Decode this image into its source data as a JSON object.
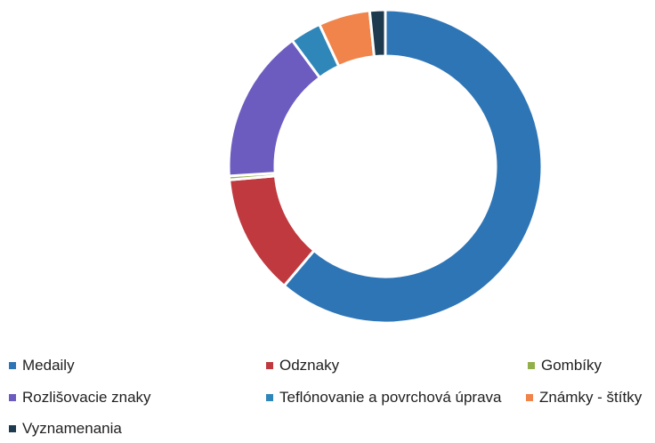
{
  "chart_data": {
    "type": "pie",
    "variant": "donut",
    "title": "",
    "legend_position": "bottom",
    "series": [
      {
        "labels": [
          "Medaily",
          "Odznaky",
          "Gombíky",
          "Rozlišovacie znaky",
          "Teflónovanie a povrchová úprava",
          "Známky - štítky",
          "Vyznamenania"
        ],
        "values": [
          61.0,
          12.4,
          0.4,
          15.8,
          3.2,
          5.3,
          1.6
        ],
        "colors": [
          "#2e75b6",
          "#c0393f",
          "#92b04a",
          "#6c5cc0",
          "#2f86b8",
          "#f0844a",
          "#1d3a4f"
        ]
      }
    ]
  }
}
